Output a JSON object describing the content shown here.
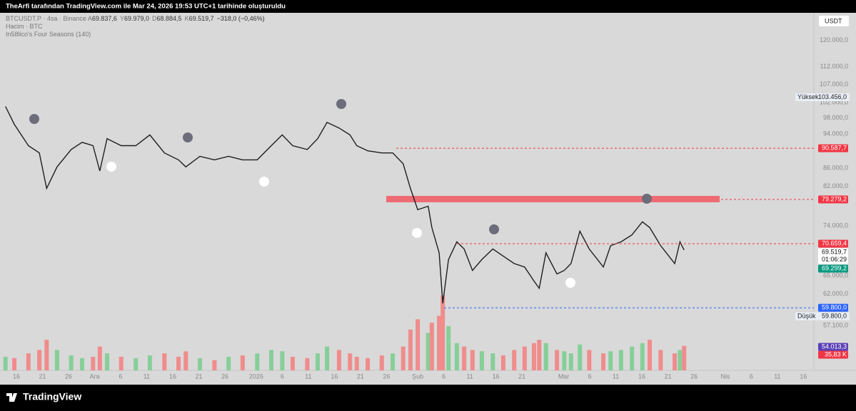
{
  "header": {
    "caption": "TheArfi tarafından TradingView.com ile Mar 24, 2026 19:53 UTC+1 tarihinde oluşturuldu"
  },
  "chart_data": {
    "type": "line",
    "title": "BTCUSDT.P · 4sa · Binance",
    "ohlc": [
      {
        "key": "A",
        "text": "69.837,6"
      },
      {
        "key": "Y",
        "text": "69.979,0"
      },
      {
        "key": "D",
        "text": "68.884,5"
      },
      {
        "key": "K",
        "text": "69.519,7"
      }
    ],
    "change": "−318,0 (−0,46%)",
    "legend_lines": [
      "Hacim · BTC",
      "In58lico's Four Seasons (140)"
    ],
    "currency": "USDT",
    "log_scale": true,
    "color": "#1e1e1e",
    "x": [
      -2.1,
      -0.4,
      2.3,
      4.4,
      5.8,
      7.8,
      10.5,
      12.6,
      14.7,
      16.0,
      17.4,
      20.1,
      22.9,
      25.6,
      28.4,
      31.1,
      32.5,
      35.2,
      38.0,
      40.7,
      43.4,
      46.2,
      48.9,
      51.0,
      53.0,
      55.8,
      57.8,
      59.6,
      61.9,
      64.0,
      65.3,
      67.4,
      70.1,
      72.2,
      74.2,
      75.6,
      77.0,
      79.0,
      79.7,
      81.1,
      81.8,
      82.9,
      84.5,
      85.9,
      87.5,
      89.3,
      91.4,
      93.4,
      95.5,
      97.5,
      99.3,
      100.3,
      101.6,
      103.7,
      105.1,
      106.4,
      108.1,
      109.9,
      112.6,
      114.0,
      116.0,
      118.1,
      120.1,
      121.5,
      123.6,
      126.3,
      127.3,
      128.1
    ],
    "values": [
      101000,
      96400,
      91200,
      89500,
      81600,
      86300,
      90300,
      92000,
      91200,
      85400,
      92900,
      91200,
      91200,
      93800,
      89500,
      87900,
      86300,
      88700,
      87900,
      88700,
      87900,
      87900,
      91200,
      93800,
      91200,
      90300,
      92900,
      96900,
      95500,
      93800,
      91200,
      90000,
      89500,
      89500,
      87000,
      81600,
      77200,
      77900,
      73700,
      69000,
      60500,
      67800,
      71000,
      69700,
      65900,
      67800,
      69700,
      68400,
      67100,
      66500,
      64100,
      62900,
      69000,
      65300,
      65900,
      67100,
      73000,
      69700,
      66500,
      70300,
      71000,
      72300,
      74800,
      73700,
      70300,
      67100,
      71000,
      69519.7
    ],
    "volume": [
      20,
      18,
      25,
      30,
      45,
      30,
      22,
      18,
      20,
      35,
      25,
      20,
      18,
      22,
      25,
      20,
      28,
      18,
      15,
      20,
      22,
      25,
      30,
      28,
      20,
      18,
      25,
      35,
      30,
      25,
      20,
      18,
      22,
      25,
      35,
      60,
      75,
      55,
      70,
      80,
      110,
      65,
      40,
      35,
      30,
      28,
      25,
      22,
      30,
      35,
      40,
      45,
      40,
      30,
      28,
      25,
      38,
      30,
      25,
      28,
      30,
      35,
      40,
      45,
      30,
      25,
      30,
      36
    ],
    "volume_lim": [
      0,
      115
    ],
    "volume_colors": {
      "up": "#86cf98",
      "down": "#f08c8c"
    },
    "xlim": [
      -3.15,
      153
    ],
    "xticks": [
      {
        "value": 0,
        "label": "16"
      },
      {
        "value": 5,
        "label": "21"
      },
      {
        "value": 10,
        "label": "26"
      },
      {
        "value": 15,
        "label": "Ara"
      },
      {
        "value": 20,
        "label": "6"
      },
      {
        "value": 25,
        "label": "11"
      },
      {
        "value": 30,
        "label": "16"
      },
      {
        "value": 35,
        "label": "21"
      },
      {
        "value": 40,
        "label": "26"
      },
      {
        "value": 46,
        "label": "2026"
      },
      {
        "value": 51,
        "label": "6"
      },
      {
        "value": 56,
        "label": "11"
      },
      {
        "value": 61,
        "label": "16"
      },
      {
        "value": 66,
        "label": "21"
      },
      {
        "value": 71,
        "label": "26"
      },
      {
        "value": 77,
        "label": "Şub"
      },
      {
        "value": 82,
        "label": "6"
      },
      {
        "value": 87,
        "label": "11"
      },
      {
        "value": 92,
        "label": "16"
      },
      {
        "value": 97,
        "label": "21"
      },
      {
        "value": 105,
        "label": "Mar"
      },
      {
        "value": 110,
        "label": "6"
      },
      {
        "value": 115,
        "label": "11"
      },
      {
        "value": 120,
        "label": "16"
      },
      {
        "value": 125,
        "label": "21"
      },
      {
        "value": 130,
        "label": "26"
      },
      {
        "value": 136,
        "label": "Nis"
      },
      {
        "value": 141,
        "label": "6"
      },
      {
        "value": 146,
        "label": "11"
      },
      {
        "value": 151,
        "label": "16"
      }
    ],
    "ylim": [
      50800,
      128900
    ],
    "yticks": [
      {
        "value": 120000,
        "label": "120.000,0"
      },
      {
        "value": 112000,
        "label": "112.000,0"
      },
      {
        "value": 107000,
        "label": "107.000,0"
      },
      {
        "value": 102000,
        "label": "102.000,0"
      },
      {
        "value": 98000,
        "label": "98.000,0"
      },
      {
        "value": 94000,
        "label": "94.000,0"
      },
      {
        "value": 86000,
        "label": "86.000,0"
      },
      {
        "value": 82000,
        "label": "82.000,0"
      },
      {
        "value": 74000,
        "label": "74.000,0"
      },
      {
        "value": 65000,
        "label": "65.000,0"
      },
      {
        "value": 62000,
        "label": "62.000,0"
      },
      {
        "value": 57100,
        "label": "57.100,0"
      }
    ],
    "price_tags": [
      {
        "price": {
          "value": 90587.7,
          "label": "90.587,7"
        },
        "color": "#f23645"
      },
      {
        "price": {
          "value": 79279.2,
          "label": "79.279,2"
        },
        "color": "#f23645"
      },
      {
        "price": {
          "value": 70659.4,
          "label": "70.659,4"
        },
        "color": "#f23645"
      },
      {
        "price": {
          "value": 69519.7,
          "label": "69.519,7"
        },
        "color": "#ffffff"
      },
      {
        "price": {
          "value": 69299.2,
          "label": "69.299,2"
        },
        "color": "#089981"
      },
      {
        "price": {
          "value": 59800,
          "label": "59.800,0"
        },
        "color": "#2962ff"
      }
    ],
    "countdown": "01:06:29",
    "stats": [
      {
        "label": "Yüksek",
        "price": {
          "value": 103456,
          "label": "103.456,0"
        }
      },
      {
        "label": "Düşük",
        "price": {
          "value": 59800,
          "label": "59.800,0"
        }
      }
    ],
    "volume_tags": [
      {
        "value": 54013.3,
        "label": "54.013,3",
        "color": "#5b3fb5"
      },
      {
        "value": 35830,
        "label": "35,83 K",
        "color": "#f23645"
      }
    ]
  },
  "footer": {
    "brand": "TradingView"
  }
}
